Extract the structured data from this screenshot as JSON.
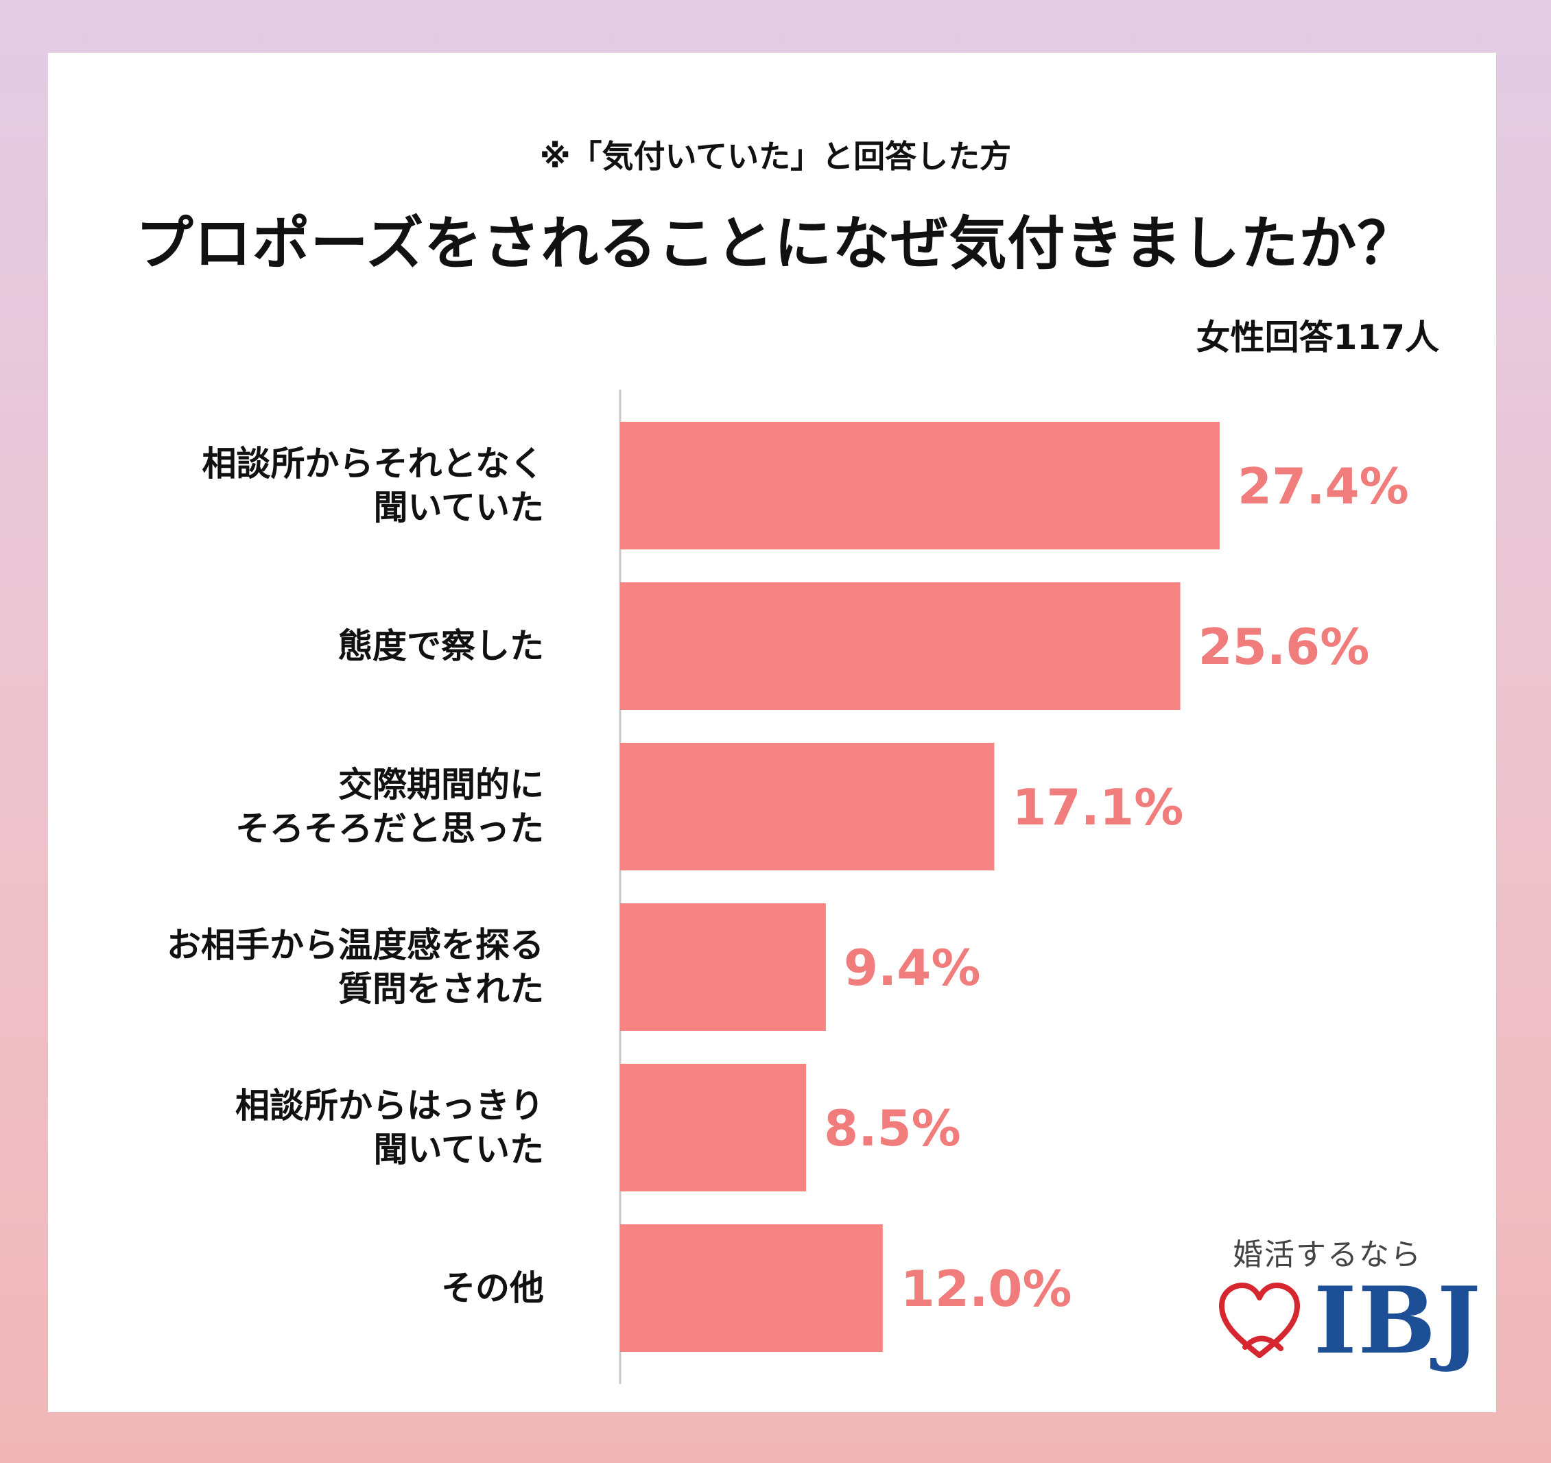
{
  "subtitle": "※「気付いていた」と回答した方",
  "title": "プロポーズをされることになぜ気付きましたか？",
  "respondents": "女性回答117人",
  "colors": {
    "bar": "#f78383",
    "value_text": "#f07c7c",
    "axis": "#c8c8c8",
    "logo": "#1d4f96",
    "heart": "#d6262f"
  },
  "logo": {
    "tagline": "婚活するなら",
    "name": "IBJ",
    "icon": "heart-icon"
  },
  "chart_data": {
    "type": "bar",
    "orientation": "horizontal",
    "categories": [
      "相談所からそれとなく\n聞いていた",
      "態度で察した",
      "交際期間的に\nそろそろだと思った",
      "お相手から温度感を探る\n質問をされた",
      "相談所からはっきり\n聞いていた",
      "その他"
    ],
    "values": [
      27.4,
      25.6,
      17.1,
      9.4,
      8.5,
      12.0
    ],
    "value_labels": [
      "27.4%",
      "25.6%",
      "17.1%",
      "9.4%",
      "8.5%",
      "12.0%"
    ],
    "unit": "%",
    "grid": false
  }
}
